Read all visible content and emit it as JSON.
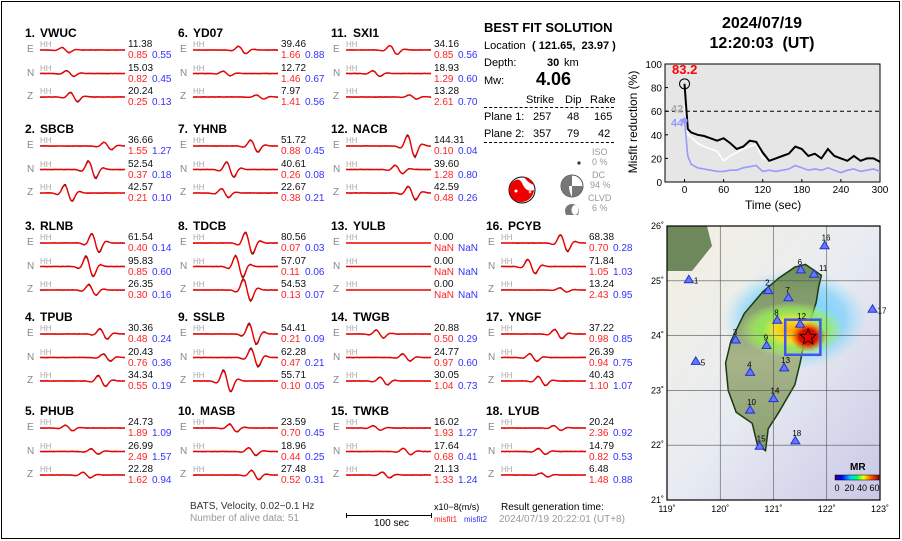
{
  "header": {
    "date": "2024/07/19",
    "time": "12:20:03  (UT)"
  },
  "solution": {
    "title": "BEST FIT SOLUTION",
    "location_label": "Location",
    "location_value": "( 121.65,  23.97 )",
    "depth_label": "Depth:",
    "depth_value": "30",
    "depth_unit": "km",
    "mw_label": "Mw:",
    "mw_value": "4.06",
    "table_headers": [
      "Strike",
      "Dip",
      "Rake"
    ],
    "planes": [
      {
        "label": "Plane 1:",
        "strike": "257",
        "dip": "48",
        "rake": "165"
      },
      {
        "label": "Plane 2:",
        "strike": "357",
        "dip": "79",
        "rake": "42"
      }
    ],
    "iso": {
      "label": "ISO",
      "value": "0 %"
    },
    "dc": {
      "label": "DC",
      "value": "94 %"
    },
    "clvd": {
      "label": "CLVD",
      "value": "6 %"
    },
    "beachball_color": "#ee0000"
  },
  "stations": [
    {
      "num": "1.",
      "name": "VWUC",
      "traces": [
        {
          "c": "E",
          "amp": "11.38",
          "m1": "0.85",
          "m2": "0.55"
        },
        {
          "c": "N",
          "amp": "15.03",
          "m1": "0.82",
          "m2": "0.45"
        },
        {
          "c": "Z",
          "amp": "20.24",
          "m1": "0.25",
          "m2": "0.13"
        }
      ]
    },
    {
      "num": "2.",
      "name": "SBCB",
      "traces": [
        {
          "c": "E",
          "amp": "36.66",
          "m1": "1.55",
          "m2": "1.27"
        },
        {
          "c": "N",
          "amp": "52.54",
          "m1": "0.37",
          "m2": "0.18"
        },
        {
          "c": "Z",
          "amp": "42.57",
          "m1": "0.21",
          "m2": "0.10"
        }
      ]
    },
    {
      "num": "3.",
      "name": "RLNB",
      "traces": [
        {
          "c": "E",
          "amp": "61.54",
          "m1": "0.40",
          "m2": "0.14"
        },
        {
          "c": "N",
          "amp": "95.83",
          "m1": "0.85",
          "m2": "0.60"
        },
        {
          "c": "Z",
          "amp": "26.35",
          "m1": "0.30",
          "m2": "0.16"
        }
      ]
    },
    {
      "num": "4.",
      "name": "TPUB",
      "traces": [
        {
          "c": "E",
          "amp": "30.36",
          "m1": "0.48",
          "m2": "0.24"
        },
        {
          "c": "N",
          "amp": "20.43",
          "m1": "0.76",
          "m2": "0.36"
        },
        {
          "c": "Z",
          "amp": "34.34",
          "m1": "0.55",
          "m2": "0.19"
        }
      ]
    },
    {
      "num": "5.",
      "name": "PHUB",
      "traces": [
        {
          "c": "E",
          "amp": "24.73",
          "m1": "1.89",
          "m2": "1.09"
        },
        {
          "c": "N",
          "amp": "26.99",
          "m1": "2.49",
          "m2": "1.57"
        },
        {
          "c": "Z",
          "amp": "22.28",
          "m1": "1.62",
          "m2": "0.94"
        }
      ]
    },
    {
      "num": "6.",
      "name": "YD07",
      "traces": [
        {
          "c": "E",
          "amp": "39.46",
          "m1": "1.66",
          "m2": "0.88"
        },
        {
          "c": "N",
          "amp": "12.72",
          "m1": "1.46",
          "m2": "0.67"
        },
        {
          "c": "Z",
          "amp": "7.97",
          "m1": "1.41",
          "m2": "0.56"
        }
      ]
    },
    {
      "num": "7.",
      "name": "YHNB",
      "traces": [
        {
          "c": "E",
          "amp": "51.72",
          "m1": "0.88",
          "m2": "0.45"
        },
        {
          "c": "N",
          "amp": "40.61",
          "m1": "0.26",
          "m2": "0.08"
        },
        {
          "c": "Z",
          "amp": "22.67",
          "m1": "0.38",
          "m2": "0.21"
        }
      ]
    },
    {
      "num": "8.",
      "name": "TDCB",
      "traces": [
        {
          "c": "E",
          "amp": "80.56",
          "m1": "0.07",
          "m2": "0.03"
        },
        {
          "c": "N",
          "amp": "57.07",
          "m1": "0.11",
          "m2": "0.06"
        },
        {
          "c": "Z",
          "amp": "54.53",
          "m1": "0.13",
          "m2": "0.07"
        }
      ]
    },
    {
      "num": "9.",
      "name": "SSLB",
      "traces": [
        {
          "c": "E",
          "amp": "54.41",
          "m1": "0.21",
          "m2": "0.09"
        },
        {
          "c": "N",
          "amp": "62.28",
          "m1": "0.47",
          "m2": "0.21"
        },
        {
          "c": "Z",
          "amp": "55.71",
          "m1": "0.10",
          "m2": "0.05"
        }
      ]
    },
    {
      "num": "10.",
      "name": "MASB",
      "traces": [
        {
          "c": "E",
          "amp": "23.59",
          "m1": "0.70",
          "m2": "0.45"
        },
        {
          "c": "N",
          "amp": "18.96",
          "m1": "0.44",
          "m2": "0.25"
        },
        {
          "c": "Z",
          "amp": "27.48",
          "m1": "0.52",
          "m2": "0.31"
        }
      ]
    },
    {
      "num": "11.",
      "name": "SXI1",
      "traces": [
        {
          "c": "E",
          "amp": "34.16",
          "m1": "0.85",
          "m2": "0.56"
        },
        {
          "c": "N",
          "amp": "18.93",
          "m1": "1.29",
          "m2": "0.60"
        },
        {
          "c": "Z",
          "amp": "13.28",
          "m1": "2.61",
          "m2": "0.70"
        }
      ]
    },
    {
      "num": "12.",
      "name": "NACB",
      "traces": [
        {
          "c": "E",
          "amp": "144.31",
          "m1": "0.10",
          "m2": "0.04"
        },
        {
          "c": "N",
          "amp": "39.60",
          "m1": "1.28",
          "m2": "0.80"
        },
        {
          "c": "Z",
          "amp": "42.59",
          "m1": "0.48",
          "m2": "0.26"
        }
      ]
    },
    {
      "num": "13.",
      "name": "YULB",
      "traces": [
        {
          "c": "E",
          "amp": "0.00",
          "m1": "NaN",
          "m2": "NaN"
        },
        {
          "c": "N",
          "amp": "0.00",
          "m1": "NaN",
          "m2": "NaN"
        },
        {
          "c": "Z",
          "amp": "0.00",
          "m1": "NaN",
          "m2": "NaN"
        }
      ]
    },
    {
      "num": "14.",
      "name": "TWGB",
      "traces": [
        {
          "c": "E",
          "amp": "20.88",
          "m1": "0.50",
          "m2": "0.29"
        },
        {
          "c": "N",
          "amp": "24.77",
          "m1": "0.97",
          "m2": "0.60"
        },
        {
          "c": "Z",
          "amp": "30.05",
          "m1": "1.04",
          "m2": "0.73"
        }
      ]
    },
    {
      "num": "15.",
      "name": "TWKB",
      "traces": [
        {
          "c": "E",
          "amp": "16.02",
          "m1": "1.93",
          "m2": "1.27"
        },
        {
          "c": "N",
          "amp": "17.64",
          "m1": "0.68",
          "m2": "0.41"
        },
        {
          "c": "Z",
          "amp": "21.13",
          "m1": "1.33",
          "m2": "1.24"
        }
      ]
    },
    {
      "num": "16.",
      "name": "PCYB",
      "traces": [
        {
          "c": "E",
          "amp": "68.38",
          "m1": "0.70",
          "m2": "0.28"
        },
        {
          "c": "N",
          "amp": "71.84",
          "m1": "1.05",
          "m2": "1.03"
        },
        {
          "c": "Z",
          "amp": "13.24",
          "m1": "2.43",
          "m2": "0.95"
        }
      ]
    },
    {
      "num": "17.",
      "name": "YNGF",
      "traces": [
        {
          "c": "E",
          "amp": "37.22",
          "m1": "0.98",
          "m2": "0.85"
        },
        {
          "c": "N",
          "amp": "26.39",
          "m1": "0.94",
          "m2": "0.75"
        },
        {
          "c": "Z",
          "amp": "40.43",
          "m1": "1.10",
          "m2": "1.07"
        }
      ]
    },
    {
      "num": "18.",
      "name": "LYUB",
      "traces": [
        {
          "c": "E",
          "amp": "20.24",
          "m1": "2.36",
          "m2": "0.92"
        },
        {
          "c": "N",
          "amp": "14.79",
          "m1": "0.82",
          "m2": "0.53"
        },
        {
          "c": "Z",
          "amp": "6.48",
          "m1": "1.48",
          "m2": "0.88"
        }
      ]
    }
  ],
  "channel_label": "HH",
  "footer": {
    "network": "BATS, Velocity, 0.02−0.1 Hz",
    "alive": "Number of alive data: 51",
    "scale_label": "100 sec",
    "unit": "x10−8(m/s)",
    "misfit1": "misfit1",
    "misfit2": "misfit2",
    "gen_label": "Result generation time:",
    "gen_time": "2024/07/19 20:22:01 (UT+8)"
  },
  "chart_data": {
    "type": "line",
    "xlabel": "Time (sec)",
    "ylabel": "Misfit reduction (%)",
    "xlim": [
      -30,
      300
    ],
    "ylim": [
      0,
      100
    ],
    "xticks": [
      0,
      60,
      120,
      180,
      240,
      300
    ],
    "yticks": [
      0,
      20,
      40,
      60,
      80,
      100
    ],
    "threshold": 60,
    "background": "#e6e6e6",
    "x": [
      0,
      5,
      10,
      20,
      30,
      40,
      50,
      60,
      70,
      80,
      90,
      100,
      110,
      120,
      130,
      140,
      150,
      160,
      170,
      180,
      190,
      200,
      210,
      220,
      230,
      240,
      250,
      260,
      270,
      280,
      290,
      300
    ],
    "series": [
      {
        "color": "#000000",
        "values": [
          83.2,
          45,
          42,
          40,
          39,
          37,
          35,
          37,
          33,
          28,
          30,
          35,
          34,
          25,
          18,
          20,
          22,
          24,
          30,
          28,
          22,
          24,
          20,
          28,
          22,
          20,
          18,
          22,
          18,
          20,
          20,
          17
        ]
      },
      {
        "color": "#ffffff",
        "values": [
          65,
          40,
          38,
          33,
          30,
          28,
          26,
          18,
          22,
          25,
          28,
          30,
          32,
          20,
          20,
          null,
          null,
          null,
          null,
          null,
          null,
          null,
          null,
          null,
          null,
          null,
          null,
          null,
          null,
          null,
          null,
          null
        ]
      },
      {
        "color": "#9999ff",
        "values": [
          52,
          22,
          15,
          12,
          11,
          10,
          9,
          9,
          10,
          10,
          12,
          13,
          14,
          9,
          10,
          9,
          10,
          11,
          14,
          12,
          10,
          11,
          10,
          12,
          10,
          8,
          10,
          11,
          9,
          10,
          11,
          9
        ]
      }
    ],
    "annotations": [
      {
        "text": "83.2",
        "color": "#ff0000"
      },
      {
        "text": "42",
        "color": "#aaaaaa"
      },
      {
        "text": "44",
        "color": "#9999ff"
      }
    ]
  },
  "map": {
    "lon_ticks": [
      "119˚",
      "120˚",
      "121˚",
      "122˚",
      "123˚"
    ],
    "lat_ticks": [
      "26˚",
      "25˚",
      "24˚",
      "23˚",
      "22˚",
      "21˚"
    ],
    "colorbar_title": "MR",
    "colorbar_ticks": [
      "0",
      "20",
      "40",
      "60"
    ],
    "epicenter": {
      "lon": 121.65,
      "lat": 23.97
    },
    "stations": [
      {
        "label": "1",
        "lon": 119.41,
        "lat": 25.02
      },
      {
        "label": "2",
        "lon": 120.9,
        "lat": 24.82
      },
      {
        "label": "3",
        "lon": 120.29,
        "lat": 23.92
      },
      {
        "label": "4",
        "lon": 120.56,
        "lat": 23.33
      },
      {
        "label": "5",
        "lon": 119.54,
        "lat": 23.53
      },
      {
        "label": "6",
        "lon": 121.51,
        "lat": 25.2
      },
      {
        "label": "7",
        "lon": 121.28,
        "lat": 24.69
      },
      {
        "label": "8",
        "lon": 121.07,
        "lat": 24.28
      },
      {
        "label": "9",
        "lon": 120.87,
        "lat": 23.82
      },
      {
        "label": "10",
        "lon": 120.56,
        "lat": 22.64
      },
      {
        "label": "11",
        "lon": 121.76,
        "lat": 25.12
      },
      {
        "label": "12",
        "lon": 121.5,
        "lat": 24.21
      },
      {
        "label": "13",
        "lon": 121.2,
        "lat": 23.41
      },
      {
        "label": "14",
        "lon": 121.0,
        "lat": 22.85
      },
      {
        "label": "15",
        "lon": 120.74,
        "lat": 21.98
      },
      {
        "label": "16",
        "lon": 121.96,
        "lat": 25.64
      },
      {
        "label": "17",
        "lon": 122.86,
        "lat": 24.48
      },
      {
        "label": "18",
        "lon": 121.41,
        "lat": 22.08
      }
    ]
  }
}
